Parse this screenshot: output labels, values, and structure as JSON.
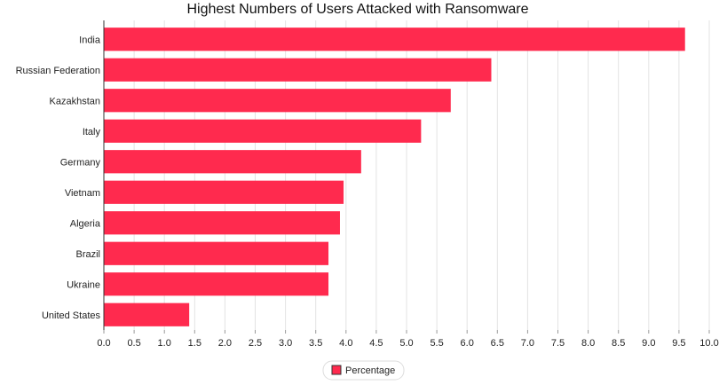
{
  "chart_data": {
    "type": "bar",
    "orientation": "horizontal",
    "title": "Highest Numbers of Users Attacked with Ransomware",
    "categories": [
      "India",
      "Russian Federation",
      "Kazakhstan",
      "Italy",
      "Germany",
      "Vietnam",
      "Algeria",
      "Brazil",
      "Ukraine",
      "United States"
    ],
    "series": [
      {
        "name": "Percentage",
        "values": [
          9.6,
          6.4,
          5.73,
          5.24,
          4.25,
          3.96,
          3.9,
          3.71,
          3.71,
          1.41
        ]
      }
    ],
    "xlim": [
      0,
      10
    ],
    "x_ticks": [
      "0.0",
      "0.5",
      "1.0",
      "1.5",
      "2.0",
      "2.5",
      "3.0",
      "3.5",
      "4.0",
      "4.5",
      "5.0",
      "5.5",
      "6.0",
      "6.5",
      "7.0",
      "7.5",
      "8.0",
      "8.5",
      "9.0",
      "9.5",
      "10.0"
    ],
    "grid": true,
    "legend_position": "bottom-center",
    "bar_color": "#ff2a4e"
  }
}
